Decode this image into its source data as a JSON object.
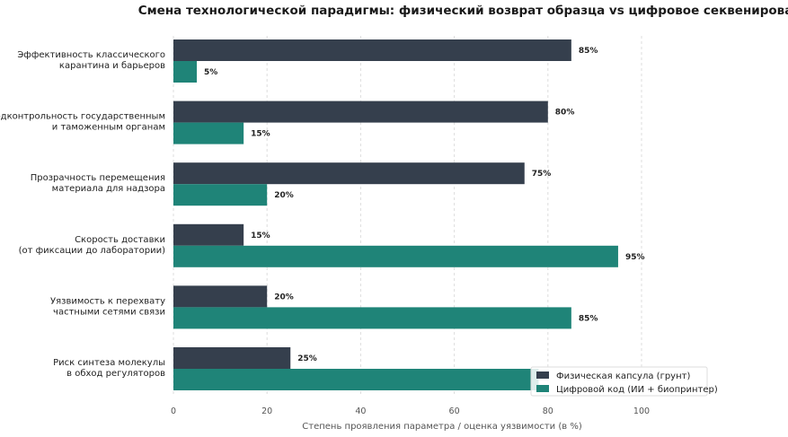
{
  "chart_data": {
    "type": "bar",
    "orientation": "horizontal",
    "title": "Смена технологической парадигмы: физический возврат образца vs цифровое секвенирование",
    "xlabel": "Степень проявления параметра / оценка уязвимости (в %)",
    "ylabel": "",
    "xlim": [
      0,
      100
    ],
    "xticks": [
      "0",
      "20",
      "40",
      "60",
      "80",
      "100"
    ],
    "grid": true,
    "legend_position": "bottom-right",
    "categories": [
      [
        "Эффективность классического",
        "карантина и барьеров"
      ],
      [
        "Подконтрольность государственным",
        "и таможенным органам"
      ],
      [
        "Прозрачность перемещения",
        "материала для надзора"
      ],
      [
        "Скорость доставки",
        "(от фиксации до лаборатории)"
      ],
      [
        "Уязвимость к перехвату",
        "частными сетями связи"
      ],
      [
        "Риск синтеза молекулы",
        "в обход регуляторов"
      ]
    ],
    "series": [
      {
        "name": "Физическая капсула (грунт)",
        "color": "#353f4d",
        "values": [
          85,
          80,
          75,
          15,
          20,
          25
        ]
      },
      {
        "name": "Цифровой код (ИИ + биопринтер)",
        "color": "#1f8478",
        "values": [
          5,
          15,
          20,
          95,
          85,
          78
        ]
      }
    ],
    "value_labels": [
      [
        "85%",
        "80%",
        "75%",
        "15%",
        "20%",
        "25%"
      ],
      [
        "5%",
        "15%",
        "20%",
        "95%",
        "85%",
        ""
      ]
    ]
  }
}
